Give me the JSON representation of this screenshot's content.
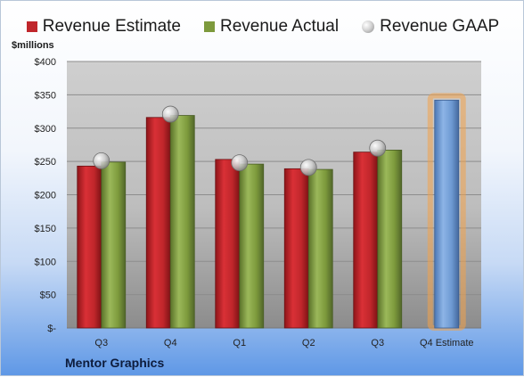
{
  "legend": {
    "estimate": "Revenue Estimate",
    "actual": "Revenue Actual",
    "gaap": "Revenue GAAP"
  },
  "unit_label": "$millions",
  "company": "Mentor Graphics",
  "colors": {
    "estimate": "#c0262b",
    "actual": "#7d9a3c",
    "gaap": "#b8b8b8",
    "forecast": "#6e9ad3",
    "forecast_glow": "#f3a24b"
  },
  "chart_data": {
    "type": "bar",
    "categories": [
      "Q3",
      "Q4",
      "Q1",
      "Q2",
      "Q3",
      "Q4 Estimate"
    ],
    "series": [
      {
        "name": "Revenue Estimate",
        "values": [
          243,
          316,
          253,
          239,
          264,
          342
        ]
      },
      {
        "name": "Revenue Actual",
        "values": [
          249,
          319,
          246,
          238,
          267,
          null
        ]
      },
      {
        "name": "Revenue GAAP",
        "values": [
          251,
          321,
          248,
          241,
          270,
          null
        ]
      }
    ],
    "yticks": [
      "$-",
      "$50",
      "$100",
      "$150",
      "$200",
      "$250",
      "$300",
      "$350",
      "$400"
    ],
    "ylim": [
      0,
      400
    ],
    "ylabel": "$millions",
    "grid": true,
    "legend_position": "top"
  }
}
